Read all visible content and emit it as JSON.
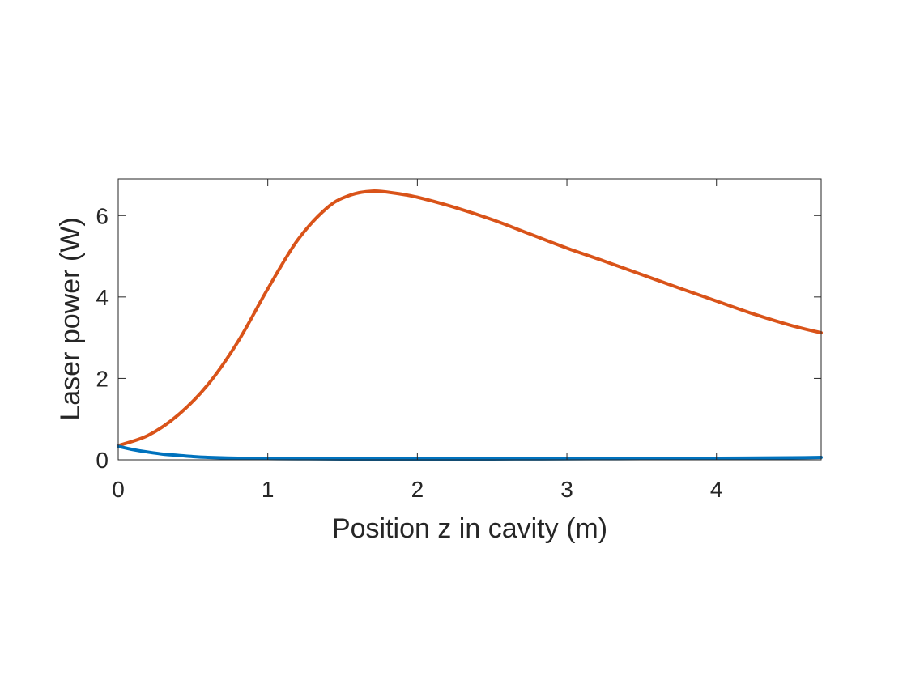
{
  "chart_data": {
    "type": "line",
    "title": "",
    "xlabel": "Position z in cavity (m)",
    "ylabel": "Laser power (W)",
    "xlim": [
      0,
      4.7
    ],
    "ylim": [
      0,
      6.9
    ],
    "xticks": [
      0,
      1,
      2,
      3,
      4
    ],
    "yticks": [
      0,
      2,
      4,
      6
    ],
    "grid": false,
    "legend": "none",
    "series": [
      {
        "color": "#D95319",
        "x": [
          0,
          0.2,
          0.4,
          0.6,
          0.8,
          1.0,
          1.2,
          1.4,
          1.55,
          1.7,
          1.85,
          2.0,
          2.25,
          2.5,
          2.75,
          3.0,
          3.25,
          3.5,
          3.75,
          4.0,
          4.25,
          4.5,
          4.7
        ],
        "y": [
          0.35,
          0.6,
          1.1,
          1.85,
          2.9,
          4.2,
          5.4,
          6.2,
          6.5,
          6.6,
          6.55,
          6.45,
          6.2,
          5.9,
          5.55,
          5.2,
          4.88,
          4.55,
          4.22,
          3.9,
          3.58,
          3.3,
          3.12
        ]
      },
      {
        "color": "#0072BD",
        "x": [
          0,
          0.1,
          0.2,
          0.3,
          0.4,
          0.5,
          0.6,
          0.8,
          1.0,
          1.2,
          1.5,
          2.0,
          2.5,
          3.0,
          3.5,
          4.0,
          4.5,
          4.7
        ],
        "y": [
          0.33,
          0.25,
          0.19,
          0.14,
          0.11,
          0.08,
          0.06,
          0.04,
          0.03,
          0.025,
          0.02,
          0.02,
          0.02,
          0.025,
          0.03,
          0.04,
          0.05,
          0.06
        ]
      }
    ]
  }
}
